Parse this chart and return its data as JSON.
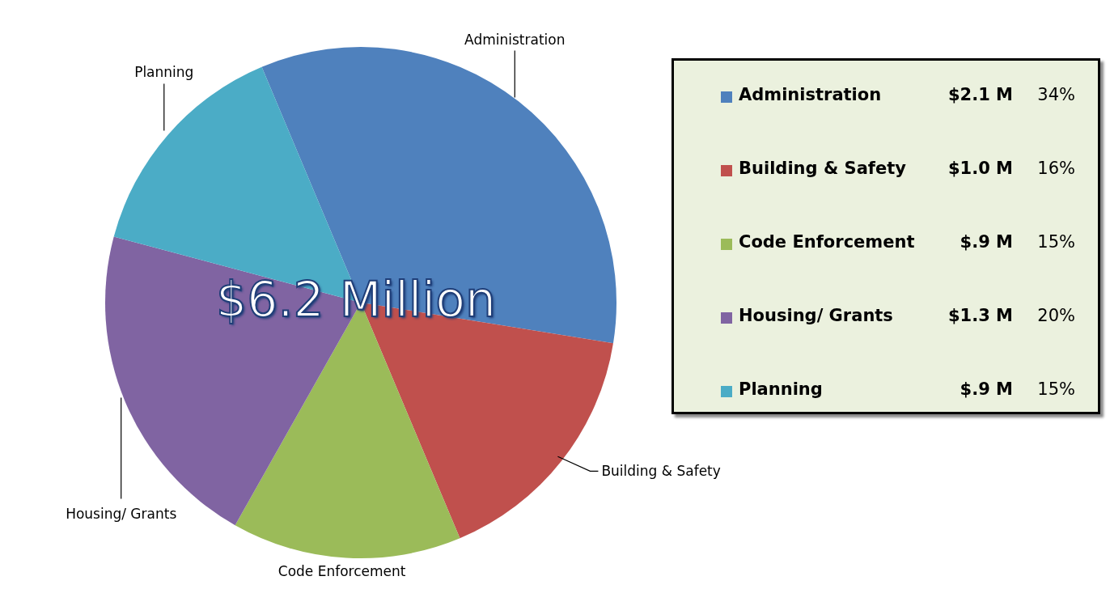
{
  "chart_data": {
    "type": "pie",
    "categories": [
      "Administration",
      "Building & Safety",
      "Code Enforcement",
      "Housing/ Grants",
      "Planning"
    ],
    "values": [
      2.1,
      1.0,
      0.9,
      1.3,
      0.9
    ],
    "value_labels": [
      "$2.1 M",
      "$1.0 M",
      "$.9 M",
      "$1.3 M",
      "$.9 M"
    ],
    "colors": [
      "#4f81bd",
      "#c0504d",
      "#9bbb59",
      "#8064a2",
      "#4bacc6"
    ],
    "annotations": [
      "$6.2 Million",
      "34%",
      "16%",
      "15%",
      "20%",
      "15%"
    ],
    "legend": "right"
  }
}
